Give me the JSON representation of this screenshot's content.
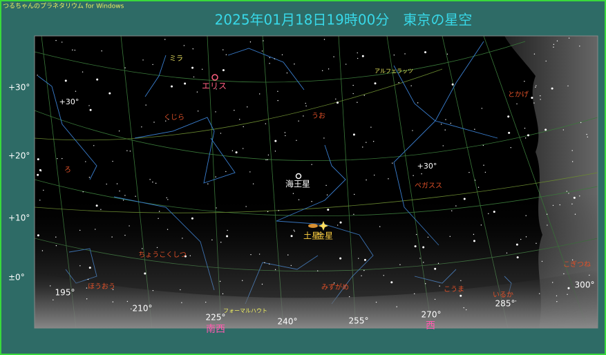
{
  "header": {
    "app_title": "つるちゃんのプラネタリウム for Windows",
    "title": "2025年01月18日19時00分　東京の星空"
  },
  "altitude_labels": [
    "+30°",
    "+20°",
    "+10°",
    "±0°"
  ],
  "azimuth_labels": [
    "195°",
    "210°",
    "225°",
    "240°",
    "255°",
    "270°",
    "285°",
    "300°"
  ],
  "directions": [
    "南西",
    "西"
  ],
  "grid_labels": [
    "+30°",
    "+30°"
  ],
  "constellations": [
    "ミラ",
    "くじら",
    "うお",
    "ろ",
    "ペガスス",
    "ちょうこくしつ",
    "ほうおう",
    "みずがめ",
    "こうま",
    "いるか",
    "とかげ",
    "こぎつね"
  ],
  "star_names": [
    "アルフェラッツ",
    "フォーマルハウト"
  ],
  "planets": [
    "エリス",
    "海王星",
    "土星",
    "金星"
  ]
}
